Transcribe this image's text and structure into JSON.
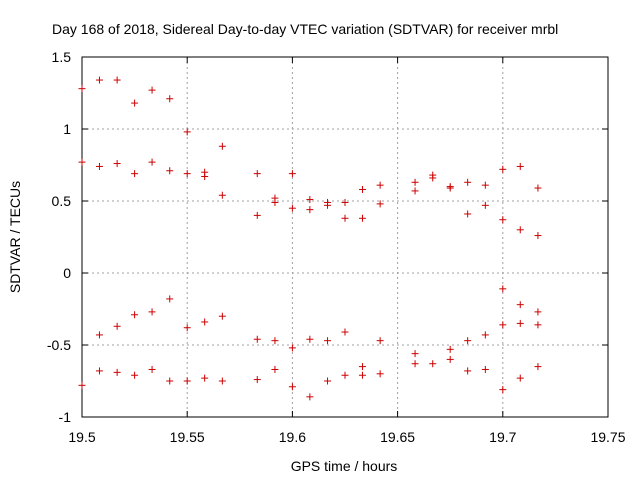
{
  "chart_data": {
    "type": "scatter",
    "title": "Day 168 of 2018, Sidereal Day-to-day VTEC variation (SDTVAR) for receiver mrbl",
    "xlabel": "GPS time / hours",
    "ylabel": "SDTVAR / TECUs",
    "xlim": [
      19.5,
      19.75
    ],
    "ylim": [
      -1,
      1.5
    ],
    "xticks": [
      "19.5",
      "19.55",
      "19.6",
      "19.65",
      "19.7",
      "19.75"
    ],
    "yticks": [
      "-1",
      "-0.5",
      "0",
      "0.5",
      "1",
      "1.5"
    ],
    "grid": true,
    "marker": "+",
    "marker_color": "#cc0000",
    "points": [
      [
        19.5,
        1.28
      ],
      [
        19.5083,
        1.34
      ],
      [
        19.5167,
        1.34
      ],
      [
        19.525,
        1.18
      ],
      [
        19.5333,
        1.27
      ],
      [
        19.5417,
        1.21
      ],
      [
        19.55,
        0.98
      ],
      [
        19.5667,
        0.88
      ],
      [
        19.5,
        0.77
      ],
      [
        19.5083,
        0.74
      ],
      [
        19.5167,
        0.76
      ],
      [
        19.525,
        0.69
      ],
      [
        19.5333,
        0.77
      ],
      [
        19.5417,
        0.71
      ],
      [
        19.55,
        0.69
      ],
      [
        19.5583,
        0.7
      ],
      [
        19.5583,
        0.67
      ],
      [
        19.5667,
        0.54
      ],
      [
        19.5833,
        0.69
      ],
      [
        19.5833,
        0.4
      ],
      [
        19.5917,
        0.52
      ],
      [
        19.5917,
        0.49
      ],
      [
        19.6,
        0.69
      ],
      [
        19.6,
        0.45
      ],
      [
        19.6083,
        0.51
      ],
      [
        19.6083,
        0.44
      ],
      [
        19.6167,
        0.49
      ],
      [
        19.6167,
        0.47
      ],
      [
        19.625,
        0.49
      ],
      [
        19.625,
        0.38
      ],
      [
        19.6333,
        0.58
      ],
      [
        19.6333,
        0.38
      ],
      [
        19.6417,
        0.61
      ],
      [
        19.6417,
        0.48
      ],
      [
        19.6583,
        0.63
      ],
      [
        19.6583,
        0.57
      ],
      [
        19.6667,
        0.68
      ],
      [
        19.6667,
        0.66
      ],
      [
        19.675,
        0.6
      ],
      [
        19.675,
        0.59
      ],
      [
        19.6833,
        0.63
      ],
      [
        19.6833,
        0.41
      ],
      [
        19.6917,
        0.61
      ],
      [
        19.6917,
        0.47
      ],
      [
        19.7,
        0.72
      ],
      [
        19.7,
        0.37
      ],
      [
        19.7083,
        0.74
      ],
      [
        19.7083,
        0.3
      ],
      [
        19.7167,
        0.59
      ],
      [
        19.7167,
        0.26
      ],
      [
        19.5083,
        -0.43
      ],
      [
        19.5167,
        -0.37
      ],
      [
        19.525,
        -0.29
      ],
      [
        19.5333,
        -0.27
      ],
      [
        19.5417,
        -0.18
      ],
      [
        19.55,
        -0.38
      ],
      [
        19.5583,
        -0.34
      ],
      [
        19.5667,
        -0.3
      ],
      [
        19.5833,
        -0.46
      ],
      [
        19.5917,
        -0.47
      ],
      [
        19.6,
        -0.52
      ],
      [
        19.6083,
        -0.46
      ],
      [
        19.6167,
        -0.47
      ],
      [
        19.625,
        -0.41
      ],
      [
        19.6333,
        -0.65
      ],
      [
        19.6417,
        -0.47
      ],
      [
        19.6583,
        -0.56
      ],
      [
        19.6583,
        -0.63
      ],
      [
        19.6667,
        -0.63
      ],
      [
        19.675,
        -0.53
      ],
      [
        19.675,
        -0.6
      ],
      [
        19.6833,
        -0.47
      ],
      [
        19.6917,
        -0.43
      ],
      [
        19.7,
        -0.11
      ],
      [
        19.7,
        -0.36
      ],
      [
        19.7083,
        -0.22
      ],
      [
        19.7083,
        -0.35
      ],
      [
        19.7167,
        -0.27
      ],
      [
        19.7167,
        -0.36
      ],
      [
        19.5,
        -0.78
      ],
      [
        19.5083,
        -0.68
      ],
      [
        19.5167,
        -0.69
      ],
      [
        19.525,
        -0.71
      ],
      [
        19.5333,
        -0.67
      ],
      [
        19.5417,
        -0.75
      ],
      [
        19.55,
        -0.75
      ],
      [
        19.5583,
        -0.73
      ],
      [
        19.5667,
        -0.75
      ],
      [
        19.5833,
        -0.74
      ],
      [
        19.5917,
        -0.67
      ],
      [
        19.6,
        -0.79
      ],
      [
        19.6083,
        -0.86
      ],
      [
        19.6167,
        -0.75
      ],
      [
        19.625,
        -0.71
      ],
      [
        19.6333,
        -0.71
      ],
      [
        19.6417,
        -0.7
      ],
      [
        19.6833,
        -0.68
      ],
      [
        19.6917,
        -0.67
      ],
      [
        19.7,
        -0.81
      ],
      [
        19.7083,
        -0.73
      ],
      [
        19.7167,
        -0.65
      ]
    ]
  }
}
